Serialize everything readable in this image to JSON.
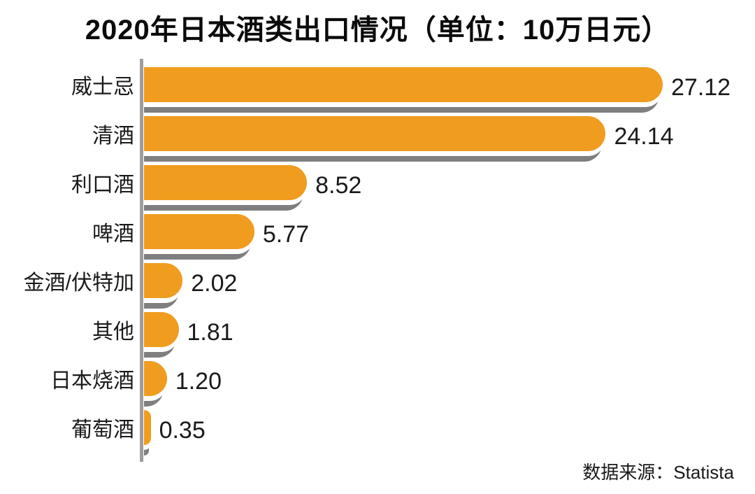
{
  "title": "2020年日本酒类出口情况（单位：10万日元）",
  "source": "数据来源：Statista",
  "colors": {
    "bar": "#f09c1e",
    "bar_shadow": "#7f7f7f",
    "axis_line": "#9e9e9e",
    "text": "#1a1a1a",
    "background": "#ffffff"
  },
  "chart_data": {
    "type": "bar",
    "orientation": "horizontal",
    "title": "2020年日本酒类出口情况（单位：10万日元）",
    "unit": "10万日元",
    "categories": [
      "威士忌",
      "清酒",
      "利口酒",
      "啤酒",
      "金酒/伏特加",
      "其他",
      "日本烧酒",
      "葡萄酒"
    ],
    "values": [
      27.12,
      24.14,
      8.52,
      5.77,
      2.02,
      1.81,
      1.2,
      0.35
    ],
    "value_labels": [
      "27.12",
      "24.14",
      "8.52",
      "5.77",
      "2.02",
      "1.81",
      "1.20",
      "0.35"
    ],
    "xlim": [
      0,
      30
    ],
    "grid": false,
    "legend": false,
    "source": "数据来源：Statista"
  }
}
